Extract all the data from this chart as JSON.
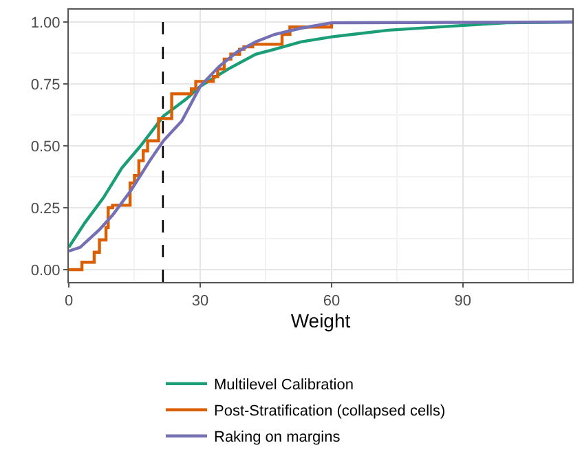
{
  "chart_data": {
    "type": "line",
    "xlabel": "Weight",
    "xlim": [
      0,
      115
    ],
    "ylim": [
      -0.05,
      1.05
    ],
    "xticks": [
      0,
      30,
      60,
      90
    ],
    "yticks": [
      {
        "value": 0,
        "label": "0.00"
      },
      {
        "value": 0.25,
        "label": "0.25"
      },
      {
        "value": 0.5,
        "label": "0.50"
      },
      {
        "value": 0.75,
        "label": "0.75"
      },
      {
        "value": 1,
        "label": "1.00"
      }
    ],
    "grid": true,
    "legend": "bottom",
    "line_style": "solid",
    "marker": "none",
    "ref_lines": [
      {
        "axis": "x",
        "value": 21.5,
        "color": "#000000",
        "line_style": "dashed"
      }
    ],
    "series": [
      {
        "name": "Multilevel Calibration",
        "color": "#1b9e77",
        "x": [
          0,
          3.7,
          7.9,
          12.1,
          16.4,
          21.6,
          26.9,
          30,
          36.4,
          42.7,
          47,
          53,
          60,
          73,
          89,
          100,
          115
        ],
        "values": [
          0.09,
          0.19,
          0.29,
          0.41,
          0.5,
          0.62,
          0.69,
          0.74,
          0.81,
          0.87,
          0.89,
          0.92,
          0.94,
          0.967,
          0.985,
          0.997,
          1.0
        ]
      },
      {
        "name": "Post-Stratification (collapsed cells)",
        "type": "step",
        "color": "#d95f02",
        "x": [
          0,
          3,
          5.8,
          7,
          8.5,
          9,
          10,
          14,
          15,
          16,
          17,
          18,
          20.5,
          23.5,
          28,
          29,
          33,
          34,
          35.5,
          37,
          39,
          40,
          42,
          48.7,
          50.5,
          60
        ],
        "values": [
          0,
          0.03,
          0.07,
          0.12,
          0.17,
          0.25,
          0.26,
          0.35,
          0.38,
          0.44,
          0.48,
          0.52,
          0.61,
          0.71,
          0.73,
          0.76,
          0.78,
          0.81,
          0.85,
          0.87,
          0.89,
          0.9,
          0.91,
          0.95,
          0.98,
          1.0
        ]
      },
      {
        "name": "Raking on margins",
        "color": "#7570b3",
        "x": [
          0,
          2.6,
          6.9,
          10,
          14.2,
          18.5,
          21.6,
          25.8,
          30,
          34.3,
          38.5,
          42.7,
          47,
          53,
          60,
          115
        ],
        "values": [
          0.075,
          0.09,
          0.16,
          0.22,
          0.32,
          0.44,
          0.52,
          0.6,
          0.74,
          0.82,
          0.88,
          0.92,
          0.95,
          0.975,
          0.997,
          1.0
        ]
      }
    ]
  }
}
